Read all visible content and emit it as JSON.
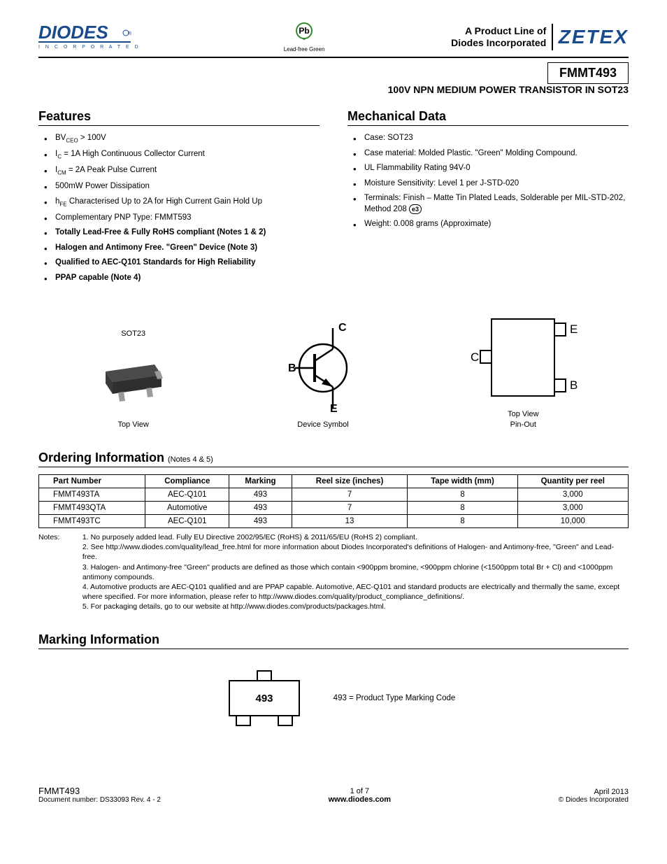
{
  "header": {
    "brand_left": "DIODES",
    "brand_left_sub": "I N C O R P O R A T E D",
    "pb_label": "Lead-free Green",
    "line1": "A Product Line of",
    "line2": "Diodes Incorporated",
    "brand_right": "ZETEX",
    "part": "FMMT493",
    "subtitle": "100V NPN MEDIUM POWER TRANSISTOR IN SOT23"
  },
  "features": {
    "title": "Features",
    "items": [
      {
        "html": "BV<sub>CEO</sub> > 100V"
      },
      {
        "html": "I<sub>C</sub> = 1A High Continuous Collector Current"
      },
      {
        "html": "I<sub>CM</sub> = 2A Peak Pulse Current"
      },
      {
        "html": "500mW Power Dissipation"
      },
      {
        "html": "h<sub>FE</sub> Characterised Up to 2A for High Current Gain Hold Up"
      },
      {
        "html": "Complementary PNP Type: FMMT593"
      },
      {
        "html": "<span class='bold'>Totally Lead-Free & Fully RoHS compliant (Notes 1 & 2)</span>"
      },
      {
        "html": "<span class='bold'>Halogen and Antimony Free. \"Green\" Device (Note 3)</span>"
      },
      {
        "html": "<span class='bold'>Qualified to AEC-Q101 Standards for High Reliability</span>"
      },
      {
        "html": "<span class='bold'>PPAP capable (Note 4)</span>"
      }
    ]
  },
  "mechanical": {
    "title": "Mechanical Data",
    "items": [
      {
        "html": "Case: SOT23"
      },
      {
        "html": "Case material: Molded Plastic. \"Green\" Molding Compound."
      },
      {
        "html": "UL Flammability Rating 94V-0"
      },
      {
        "html": "Moisture Sensitivity: Level 1 per J-STD-020"
      },
      {
        "html": "Terminals: Finish – Matte Tin Plated Leads, Solderable per MIL-STD-202, Method 208 <span class='e3'>e3</span>"
      },
      {
        "html": "Weight: 0.008 grams (Approximate)"
      }
    ]
  },
  "diagrams": {
    "sot23": "SOT23",
    "topview": "Top View",
    "symbol": "Device Symbol",
    "pinout1": "Top View",
    "pinout2": "Pin-Out",
    "pins": {
      "c": "C",
      "b": "B",
      "e": "E"
    }
  },
  "ordering": {
    "title": "Ordering Information",
    "sub": "(Notes 4 & 5)",
    "columns": [
      "Part Number",
      "Compliance",
      "Marking",
      "Reel size (inches)",
      "Tape width (mm)",
      "Quantity per reel"
    ],
    "rows": [
      [
        "FMMT493TA",
        "AEC-Q101",
        "493",
        "7",
        "8",
        "3,000"
      ],
      [
        "FMMT493QTA",
        "Automotive",
        "493",
        "7",
        "8",
        "3,000"
      ],
      [
        "FMMT493TC",
        "AEC-Q101",
        "493",
        "13",
        "8",
        "10,000"
      ]
    ]
  },
  "notes": {
    "label": "Notes:",
    "items": [
      "1. No purposely added lead. Fully EU Directive 2002/95/EC (RoHS) & 2011/65/EU (RoHS 2) compliant.",
      "2. See http://www.diodes.com/quality/lead_free.html for more information about Diodes Incorporated's definitions of Halogen- and Antimony-free, \"Green\" and Lead-free.",
      "3. Halogen- and Antimony-free \"Green\" products are defined as those which contain <900ppm bromine, <900ppm chlorine (<1500ppm total Br + Cl) and <1000ppm antimony compounds.",
      "4. Automotive products are AEC-Q101 qualified and are PPAP capable. Automotive, AEC-Q101 and standard products are electrically and thermally the same, except where specified. For more information, please refer to http://www.diodes.com/quality/product_compliance_definitions/.",
      "5. For packaging details, go to our website at http://www.diodes.com/products/packages.html."
    ]
  },
  "marking": {
    "title": "Marking Information",
    "code": "493",
    "desc": "493 = Product Type Marking Code"
  },
  "footer": {
    "left1": "FMMT493",
    "left2": "Document number: DS33093 Rev. 4 - 2",
    "center1": "1 of 7",
    "center2": "www.diodes.com",
    "right1": "April 2013",
    "right2": "© Diodes Incorporated"
  },
  "colors": {
    "diodes_blue": "#1a4b8c",
    "sot_body": "#4a4a4a",
    "sot_lead": "#9a9a9a",
    "pb_green": "#2e8b2e"
  }
}
